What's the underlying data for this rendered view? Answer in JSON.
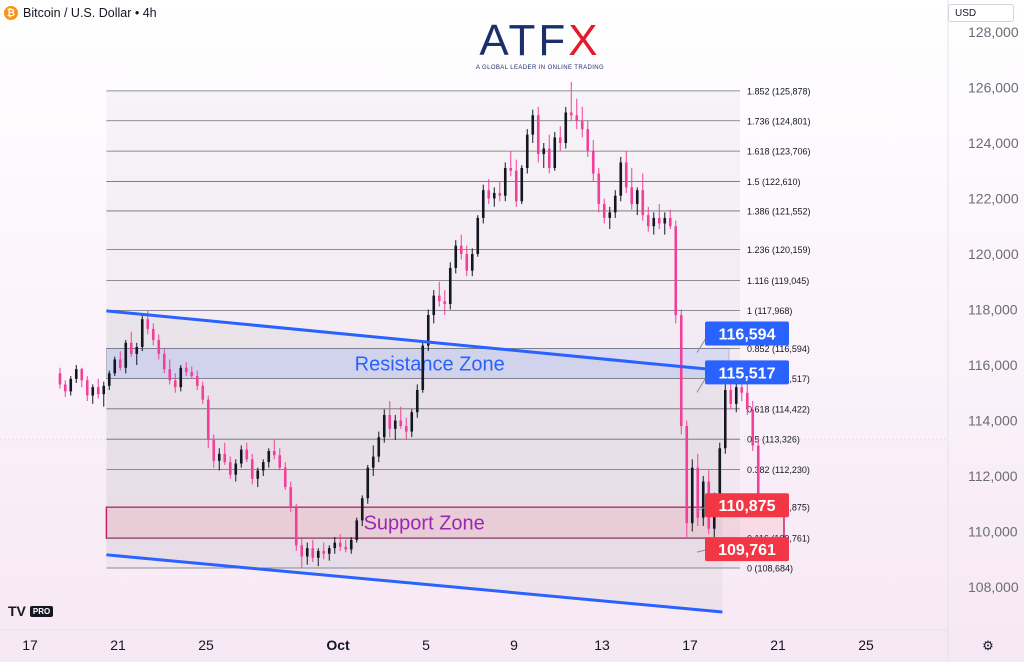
{
  "header": {
    "symbol_icon": "bitcoin-icon",
    "title": "Bitcoin / U.S. Dollar • 4h"
  },
  "toolbar": {
    "currency": "USD"
  },
  "branding": {
    "logo_letters": [
      "ATF",
      "X"
    ],
    "tagline": "A GLOBAL LEADER IN ONLINE TRADING",
    "watermark": "TV",
    "watermark_badge": "PRO"
  },
  "colors": {
    "bull": "#131722",
    "bear": "#f23f9a",
    "resistance_label": "#2962ff",
    "support_label": "#f23645",
    "channel": "#2962ff",
    "resistance_zone": "#d5dcf2",
    "support_zone": "#f7dce8",
    "zone_text_resistance": "#2962ff",
    "zone_text_support": "#9c27b0"
  },
  "chart_data": {
    "type": "candlestick",
    "y_axis": {
      "ticks": [
        108000,
        110000,
        112000,
        114000,
        116000,
        118000,
        120000,
        122000,
        124000,
        126000,
        128000
      ],
      "tick_labels": [
        "108,000",
        "110,000",
        "112,000",
        "114,000",
        "116,000",
        "118,000",
        "120,000",
        "122,000",
        "124,000",
        "126,000",
        "128,000"
      ],
      "range": [
        106000,
        129000
      ]
    },
    "x_axis": {
      "tick_labels": [
        "17",
        "21",
        "25",
        "Oct",
        "5",
        "9",
        "13",
        "17",
        "21",
        "25"
      ],
      "tick_days": [
        0,
        4,
        8,
        14,
        18,
        22,
        26,
        30,
        34,
        38
      ],
      "range": [
        -2,
        46
      ]
    },
    "fibonacci": [
      {
        "label": "1.852 (125,878)",
        "price": 125878
      },
      {
        "label": "1.736 (124,801)",
        "price": 124801
      },
      {
        "label": "1.618 (123,706)",
        "price": 123706
      },
      {
        "label": "1.5 (122,610)",
        "price": 122610
      },
      {
        "label": "1.386 (121,552)",
        "price": 121552
      },
      {
        "label": "1.236 (120,159)",
        "price": 120159
      },
      {
        "label": "1.116 (119,045)",
        "price": 119045
      },
      {
        "label": "1 (117,968)",
        "price": 117968
      },
      {
        "label": "0.852 (116,594)",
        "price": 116594
      },
      {
        "label": "0.736 (115,517)",
        "price": 115517
      },
      {
        "label": "0.618 (114,422)",
        "price": 114422
      },
      {
        "label": "0.5 (113,326)",
        "price": 113326
      },
      {
        "label": "0.382 (112,230)",
        "price": 112230
      },
      {
        "label": "0.236 (110,875)",
        "price": 110875
      },
      {
        "label": "0.116 (109,761)",
        "price": 109761
      },
      {
        "label": "0 (108,684)",
        "price": 108684
      }
    ],
    "fib_range_days": [
      2.2,
      30
    ],
    "zones": [
      {
        "name": "Resistance Zone",
        "low": 115517,
        "high": 116594,
        "start_day": 2.2,
        "end_day": 30.5
      },
      {
        "name": "Support Zone",
        "low": 109761,
        "high": 110875,
        "start_day": 2.2,
        "end_day": 33
      }
    ],
    "price_labels": [
      {
        "text": "116,594",
        "price": 116594,
        "kind": "resistance"
      },
      {
        "text": "115,517",
        "price": 115517,
        "kind": "resistance"
      },
      {
        "text": "110,875",
        "price": 110875,
        "kind": "support"
      },
      {
        "text": "109,761",
        "price": 109761,
        "kind": "support"
      }
    ],
    "channel": {
      "upper": [
        [
          2.2,
          117950
        ],
        [
          30.2,
          115800
        ]
      ],
      "lower": [
        [
          2.2,
          109160
        ],
        [
          30.2,
          107100
        ]
      ]
    },
    "candles": [
      [
        "14.09",
        115700,
        115900,
        115150,
        115300
      ],
      [
        "14.33",
        115300,
        115450,
        114850,
        115050
      ],
      [
        "14.58",
        115050,
        115600,
        114900,
        115500
      ],
      [
        "14.83",
        115500,
        116000,
        115350,
        115850
      ],
      [
        "15.08",
        115850,
        115900,
        115200,
        115450
      ],
      [
        "15.33",
        115450,
        115600,
        114700,
        114900
      ],
      [
        "15.58",
        114900,
        115300,
        114600,
        115200
      ],
      [
        "15.83",
        115200,
        115500,
        114800,
        114950
      ],
      [
        "16.08",
        114950,
        115400,
        114500,
        115250
      ],
      [
        "16.33",
        115250,
        115800,
        115100,
        115700
      ],
      [
        "16.58",
        115700,
        116300,
        115600,
        116200
      ],
      [
        "16.83",
        116200,
        116500,
        115800,
        115900
      ],
      [
        "17.08",
        115900,
        116900,
        115700,
        116800
      ],
      [
        "17.33",
        116800,
        117200,
        116300,
        116400
      ],
      [
        "17.58",
        116400,
        116800,
        116000,
        116650
      ],
      [
        "17.83",
        116650,
        117800,
        116500,
        117650
      ],
      [
        "18.08",
        117650,
        117950,
        117100,
        117300
      ],
      [
        "18.33",
        117300,
        117500,
        116700,
        116900
      ],
      [
        "18.58",
        116900,
        117100,
        116200,
        116400
      ],
      [
        "18.83",
        116400,
        116600,
        115700,
        115850
      ],
      [
        "19.08",
        115850,
        116200,
        115300,
        115450
      ],
      [
        "19.33",
        115450,
        115700,
        115000,
        115200
      ],
      [
        "19.58",
        115200,
        116000,
        115050,
        115900
      ],
      [
        "19.83",
        115900,
        116100,
        115600,
        115750
      ],
      [
        "20.08",
        115750,
        115950,
        115500,
        115600
      ],
      [
        "20.33",
        115600,
        115800,
        115100,
        115250
      ],
      [
        "20.58",
        115250,
        115400,
        114600,
        114750
      ],
      [
        "20.83",
        114750,
        114900,
        113000,
        113300
      ],
      [
        "21.08",
        113300,
        113500,
        112300,
        112550
      ],
      [
        "21.33",
        112550,
        113000,
        112200,
        112800
      ],
      [
        "21.58",
        112800,
        113200,
        112400,
        112500
      ],
      [
        "21.83",
        112500,
        112700,
        111900,
        112050
      ],
      [
        "22.08",
        112050,
        112600,
        111800,
        112450
      ],
      [
        "22.33",
        112450,
        113100,
        112300,
        112950
      ],
      [
        "22.58",
        112950,
        113200,
        112500,
        112600
      ],
      [
        "22.83",
        112600,
        112800,
        111700,
        111900
      ],
      [
        "23.08",
        111900,
        112300,
        111600,
        112200
      ],
      [
        "23.33",
        112200,
        112600,
        112000,
        112500
      ],
      [
        "23.58",
        112500,
        113000,
        112300,
        112900
      ],
      [
        "23.83",
        112900,
        113300,
        112600,
        112750
      ],
      [
        "24.08",
        112750,
        113000,
        112200,
        112300
      ],
      [
        "24.33",
        112300,
        112500,
        111500,
        111600
      ],
      [
        "24.58",
        111600,
        111800,
        110700,
        110850
      ],
      [
        "24.83",
        110850,
        111000,
        109300,
        109500
      ],
      [
        "25.08",
        109500,
        109800,
        108700,
        109100
      ],
      [
        "25.33",
        109100,
        109600,
        108800,
        109400
      ],
      [
        "25.58",
        109400,
        109700,
        108900,
        109050
      ],
      [
        "25.83",
        109050,
        109400,
        108750,
        109300
      ],
      [
        "26.08",
        109300,
        109600,
        109000,
        109200
      ],
      [
        "26.33",
        109200,
        109500,
        108950,
        109400
      ],
      [
        "26.58",
        109400,
        109800,
        109200,
        109600
      ],
      [
        "26.83",
        109600,
        109900,
        109300,
        109450
      ],
      [
        "27.08",
        109450,
        109700,
        109250,
        109350
      ],
      [
        "27.33",
        109350,
        109800,
        109200,
        109700
      ],
      [
        "27.58",
        109700,
        110500,
        109600,
        110400
      ],
      [
        "27.83",
        110400,
        111300,
        110200,
        111200
      ],
      [
        "28.08",
        111200,
        112400,
        111000,
        112300
      ],
      [
        "28.33",
        112300,
        113100,
        112000,
        112700
      ],
      [
        "28.58",
        112700,
        113600,
        112500,
        113400
      ],
      [
        "28.83",
        113400,
        114400,
        113200,
        114200
      ],
      [
        "29.08",
        114200,
        114700,
        113400,
        113700
      ],
      [
        "29.33",
        113700,
        114200,
        113300,
        114000
      ],
      [
        "29.58",
        114000,
        114500,
        113700,
        113800
      ],
      [
        "29.83",
        113800,
        114100,
        113300,
        113600
      ],
      [
        "30.08",
        113600,
        114400,
        113400,
        114300
      ],
      [
        "30.33",
        114300,
        115300,
        114100,
        115100
      ],
      [
        "30.58",
        115100,
        116900,
        115000,
        116700
      ],
      [
        "30.83",
        116700,
        118000,
        116500,
        117800
      ],
      [
        "31.08",
        117800,
        118700,
        117500,
        118500
      ],
      [
        "31.33",
        118500,
        119000,
        118100,
        118300
      ],
      [
        "31.58",
        118300,
        118700,
        117800,
        118200
      ],
      [
        "31.83",
        118200,
        119700,
        118000,
        119500
      ],
      [
        "32.08",
        119500,
        120500,
        119300,
        120300
      ],
      [
        "32.33",
        120300,
        120700,
        119800,
        120000
      ],
      [
        "32.58",
        120000,
        120300,
        119200,
        119400
      ],
      [
        "32.83",
        119400,
        120200,
        119200,
        120000
      ],
      [
        "33.08",
        120000,
        121400,
        119900,
        121300
      ],
      [
        "33.33",
        121300,
        122500,
        121100,
        122300
      ],
      [
        "33.58",
        122300,
        122700,
        121800,
        122000
      ],
      [
        "33.83",
        122000,
        122400,
        121700,
        122200
      ],
      [
        "34.08",
        122200,
        122600,
        121900,
        122100
      ],
      [
        "34.33",
        122100,
        123300,
        121900,
        123100
      ],
      [
        "34.58",
        123100,
        123700,
        122800,
        123000
      ],
      [
        "34.83",
        123000,
        123400,
        121700,
        121900
      ],
      [
        "35.08",
        121900,
        123200,
        121800,
        123100
      ],
      [
        "35.33",
        123100,
        124500,
        122900,
        124300
      ],
      [
        "35.58",
        124300,
        125200,
        124000,
        125000
      ],
      [
        "35.83",
        125000,
        125300,
        123300,
        123600
      ],
      [
        "36.08",
        123600,
        124000,
        123100,
        123800
      ],
      [
        "36.33",
        123800,
        124300,
        122900,
        123100
      ],
      [
        "36.58",
        123100,
        124400,
        123000,
        124200
      ],
      [
        "36.83",
        124200,
        124600,
        123700,
        124000
      ],
      [
        "37.08",
        124000,
        125300,
        123800,
        125100
      ],
      [
        "37.33",
        125100,
        126200,
        124800,
        125000
      ],
      [
        "37.58",
        125000,
        125600,
        124500,
        124800
      ],
      [
        "37.83",
        124800,
        125300,
        124200,
        124500
      ],
      [
        "38.08",
        124500,
        124800,
        123500,
        123700
      ],
      [
        "38.33",
        123700,
        124100,
        122600,
        122900
      ],
      [
        "38.58",
        122900,
        123100,
        121500,
        121800
      ],
      [
        "38.83",
        121800,
        122000,
        121100,
        121300
      ],
      [
        "39.08",
        121300,
        121700,
        120900,
        121500
      ],
      [
        "39.33",
        121500,
        122300,
        121300,
        122100
      ],
      [
        "39.58",
        122100,
        123500,
        121900,
        123300
      ],
      [
        "39.83",
        123300,
        123700,
        122200,
        122400
      ],
      [
        "40.08",
        122400,
        123100,
        121600,
        121800
      ],
      [
        "40.33",
        121800,
        122400,
        121400,
        122300
      ],
      [
        "40.58",
        122300,
        122900,
        121200,
        121400
      ],
      [
        "40.83",
        121400,
        121700,
        120800,
        121000
      ],
      [
        "41.08",
        121000,
        121500,
        120700,
        121300
      ],
      [
        "41.33",
        121300,
        121800,
        120900,
        121100
      ],
      [
        "41.58",
        121100,
        121500,
        120700,
        121300
      ],
      [
        "41.83",
        121300,
        121600,
        120900,
        121000
      ],
      [
        "42.08",
        121000,
        121200,
        117500,
        117800
      ],
      [
        "42.33",
        117800,
        118000,
        113500,
        113800
      ],
      [
        "42.58",
        113800,
        114000,
        109800,
        110300
      ],
      [
        "42.83",
        110300,
        112600,
        110000,
        112300
      ],
      [
        "43.08",
        112300,
        112800,
        110200,
        110500
      ],
      [
        "43.33",
        110500,
        112000,
        110200,
        111800
      ],
      [
        "43.58",
        111800,
        112200,
        109900,
        110100
      ],
      [
        "43.83",
        110100,
        111400,
        109800,
        111200
      ],
      [
        "44.08",
        111200,
        113200,
        111000,
        113000
      ],
      [
        "44.33",
        113000,
        115300,
        112800,
        115100
      ],
      [
        "44.58",
        115100,
        115800,
        114400,
        114600
      ],
      [
        "44.83",
        114600,
        115500,
        114300,
        115200
      ],
      [
        "45.08",
        115200,
        115900,
        114700,
        115000
      ],
      [
        "45.33",
        115000,
        115800,
        114200,
        114400
      ],
      [
        "45.58",
        114400,
        114700,
        112900,
        113100
      ],
      [
        "45.83",
        113100,
        113400,
        111000,
        111300
      ]
    ]
  }
}
